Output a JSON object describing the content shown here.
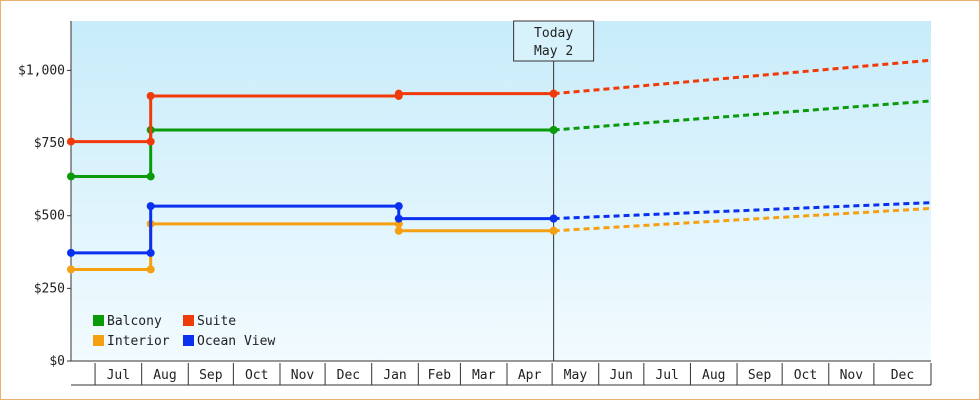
{
  "chart_data": {
    "type": "line",
    "step": true,
    "today_marker": {
      "line1": "Today",
      "line2": "May 2",
      "x": "2025-05-02"
    },
    "y_ticks": [
      "$0",
      "$250",
      "$500",
      "$750",
      "$1,000"
    ],
    "y_tick_values": [
      0,
      250,
      500,
      750,
      1000
    ],
    "ylim": [
      0,
      1170
    ],
    "x_range": [
      "2024-06-15",
      "2026-01-08"
    ],
    "months": [
      "Jul",
      "Aug",
      "Sep",
      "Oct",
      "Nov",
      "Dec",
      "Jan",
      "Feb",
      "Mar",
      "Apr",
      "May",
      "Jun",
      "Jul",
      "Aug",
      "Sep",
      "Oct",
      "Nov",
      "Dec"
    ],
    "month_dates": [
      "2024-07-01",
      "2024-08-01",
      "2024-09-01",
      "2024-10-01",
      "2024-11-01",
      "2024-12-01",
      "2025-01-01",
      "2025-02-01",
      "2025-03-01",
      "2025-04-01",
      "2025-05-01",
      "2025-06-01",
      "2025-07-01",
      "2025-08-01",
      "2025-09-01",
      "2025-10-01",
      "2025-11-01",
      "2025-12-01"
    ],
    "grid": false,
    "legend_position": "bottom-left",
    "series": [
      {
        "name": "Balcony",
        "color": "#0a9a0a",
        "history": [
          [
            "2024-06-15",
            635
          ],
          [
            "2024-08-07",
            635
          ],
          [
            "2024-08-07",
            795
          ],
          [
            "2025-05-02",
            795
          ]
        ],
        "forecast": [
          [
            "2025-05-02",
            795
          ],
          [
            "2026-01-08",
            895
          ]
        ]
      },
      {
        "name": "Suite",
        "color": "#f03a0a",
        "history": [
          [
            "2024-06-15",
            755
          ],
          [
            "2024-08-07",
            755
          ],
          [
            "2024-08-07",
            912
          ],
          [
            "2025-01-19",
            912
          ],
          [
            "2025-01-19",
            920
          ],
          [
            "2025-05-02",
            920
          ]
        ],
        "forecast": [
          [
            "2025-05-02",
            920
          ],
          [
            "2026-01-08",
            1035
          ]
        ]
      },
      {
        "name": "Interior",
        "color": "#f5a010",
        "history": [
          [
            "2024-06-15",
            315
          ],
          [
            "2024-08-07",
            315
          ],
          [
            "2024-08-07",
            472
          ],
          [
            "2025-01-19",
            472
          ],
          [
            "2025-01-19",
            448
          ],
          [
            "2025-05-02",
            448
          ]
        ],
        "forecast": [
          [
            "2025-05-02",
            448
          ],
          [
            "2026-01-08",
            525
          ]
        ]
      },
      {
        "name": "Ocean View",
        "color": "#0a30f0",
        "history": [
          [
            "2024-06-15",
            372
          ],
          [
            "2024-08-07",
            372
          ],
          [
            "2024-08-07",
            533
          ],
          [
            "2025-01-19",
            533
          ],
          [
            "2025-01-19",
            490
          ],
          [
            "2025-05-02",
            490
          ]
        ],
        "forecast": [
          [
            "2025-05-02",
            490
          ],
          [
            "2026-01-08",
            545
          ]
        ]
      }
    ]
  }
}
